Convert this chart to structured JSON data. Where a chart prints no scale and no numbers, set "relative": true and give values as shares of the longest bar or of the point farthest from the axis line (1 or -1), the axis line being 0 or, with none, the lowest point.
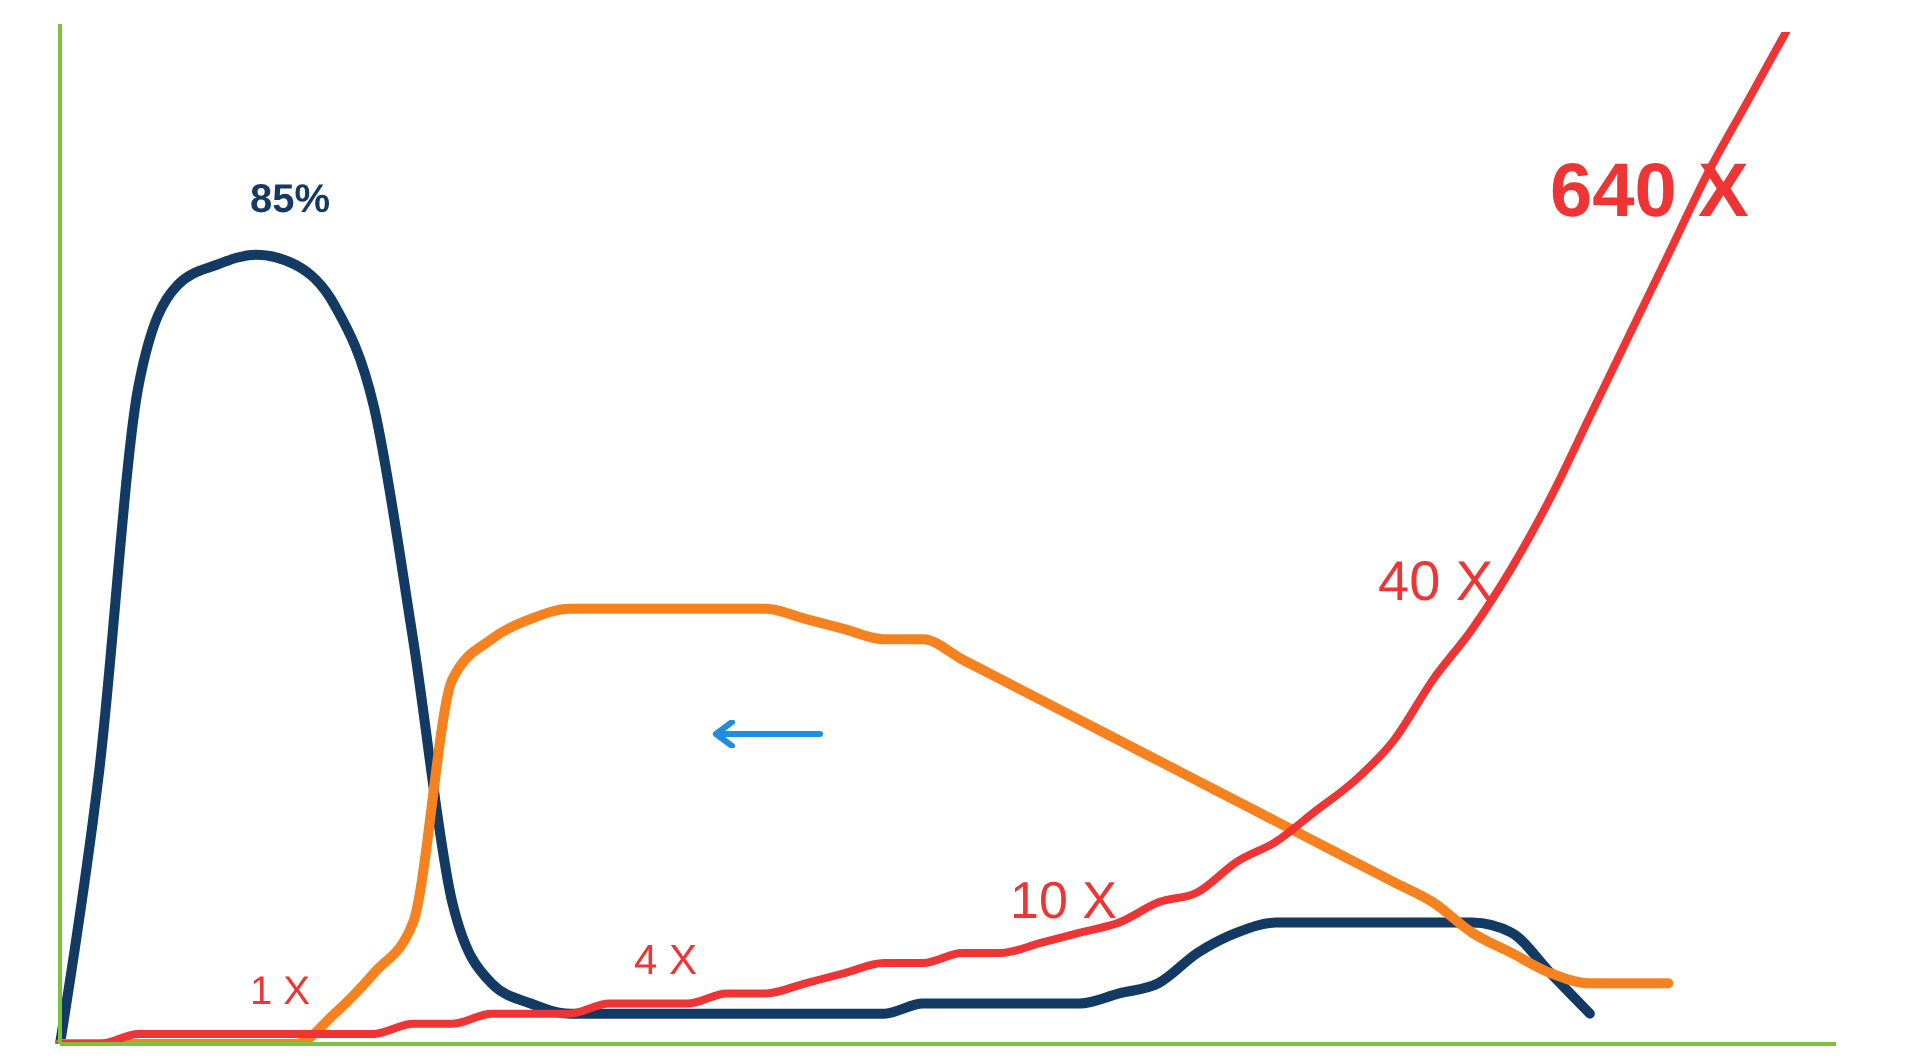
{
  "chart_data": {
    "type": "line",
    "relative": true,
    "categories": [
      null,
      null,
      null,
      null,
      null,
      null,
      null,
      null,
      null,
      null,
      null,
      null,
      null,
      null,
      null,
      null,
      null,
      null,
      null,
      null,
      null,
      null,
      null,
      null,
      null,
      null,
      null,
      null,
      null,
      null,
      null,
      null,
      null,
      null,
      null,
      null,
      null,
      null,
      null,
      null,
      null,
      null,
      null,
      null,
      null
    ],
    "series": [
      {
        "color": "#123a63",
        "values": [
          0,
          0.27,
          0.65,
          0.75,
          0.77,
          0.78,
          0.77,
          0.73,
          0.63,
          0.4,
          0.14,
          0.06,
          0.04,
          0.03,
          0.03,
          0.03,
          0.03,
          0.03,
          0.03,
          0.03,
          0.03,
          0.03,
          0.04,
          0.04,
          0.04,
          0.04,
          0.04,
          0.05,
          0.06,
          0.09,
          0.11,
          0.12,
          0.12,
          0.12,
          0.12,
          0.12,
          0.12,
          0.11,
          0.07,
          0.03,
          null,
          null,
          null,
          null,
          null
        ]
      },
      {
        "color": "#f5821f",
        "values": [
          0,
          0,
          0,
          0,
          0,
          0,
          0,
          0.03,
          0.07,
          0.12,
          0.36,
          0.4,
          0.42,
          0.43,
          0.43,
          0.43,
          0.43,
          0.43,
          0.43,
          0.42,
          0.41,
          0.4,
          0.4,
          0.38,
          0.36,
          0.34,
          0.32,
          0.3,
          0.28,
          0.26,
          0.24,
          0.22,
          0.2,
          0.18,
          0.16,
          0.14,
          0.11,
          0.09,
          0.07,
          0.06,
          0.06,
          0.06,
          null,
          null,
          null
        ]
      },
      {
        "color": "#ee3535",
        "values": [
          0,
          0,
          0.01,
          0.01,
          0.01,
          0.01,
          0.01,
          0.01,
          0.01,
          0.02,
          0.02,
          0.03,
          0.03,
          0.03,
          0.04,
          0.04,
          0.04,
          0.05,
          0.05,
          0.06,
          0.07,
          0.08,
          0.08,
          0.09,
          0.09,
          0.1,
          0.11,
          0.12,
          0.14,
          0.15,
          0.18,
          0.2,
          0.23,
          0.26,
          0.3,
          0.36,
          0.41,
          0.47,
          0.54,
          0.62,
          0.7,
          0.78,
          0.86,
          0.93,
          1
        ]
      }
    ],
    "annotations": [
      "85%",
      "1 X",
      "4 X",
      "10 X",
      "40 X",
      "640 X"
    ],
    "grid": false,
    "legend": false,
    "marker": "none",
    "line_style": "solid"
  }
}
